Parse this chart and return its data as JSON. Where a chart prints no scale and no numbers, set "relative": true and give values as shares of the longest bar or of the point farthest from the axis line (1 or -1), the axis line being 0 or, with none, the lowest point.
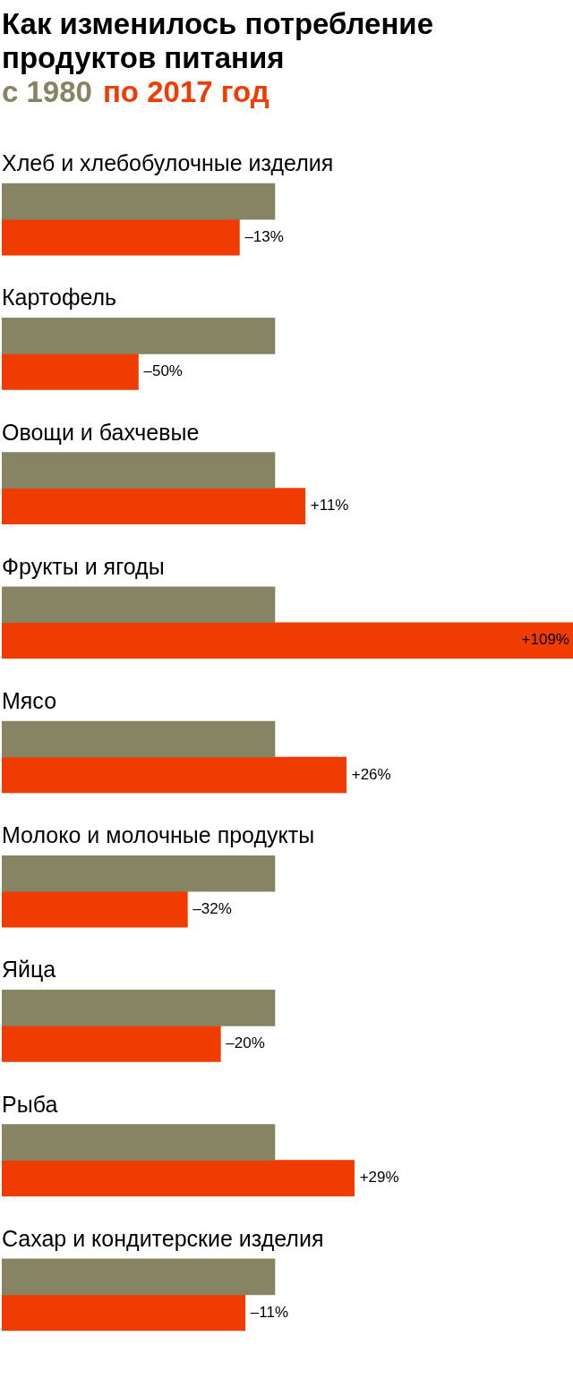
{
  "chart_data": {
    "type": "bar",
    "orientation": "horizontal",
    "relative": true,
    "title": "Как изменилось потребление продуктов питания",
    "categories": [
      "Хлеб и хлебобулочные изделия",
      "Картофель",
      "Овощи и бахчевые",
      "Фрукты и ягоды",
      "Мясо",
      "Молоко и молочные продукты",
      "Яйца",
      "Рыба",
      "Сахар и кондитерские изделия"
    ],
    "series": [
      {
        "name": "с 1980",
        "color": "#868463",
        "values": [
          0.478,
          0.478,
          0.478,
          0.478,
          0.478,
          0.478,
          0.478,
          0.478,
          0.478
        ]
      },
      {
        "name": "по 2017 год",
        "color": "#f03c00",
        "values": [
          0.416,
          0.239,
          0.531,
          1,
          0.603,
          0.325,
          0.383,
          0.617,
          0.426
        ]
      }
    ],
    "annotations": [
      {
        "text": "–13%",
        "x": 0.416,
        "y": "Хлеб и хлебобулочные изделия"
      },
      {
        "text": "–50%",
        "x": 0.239,
        "y": "Картофель"
      },
      {
        "text": "+11%",
        "x": 0.531,
        "y": "Овощи и бахчевые"
      },
      {
        "text": "+109%",
        "x": 1,
        "y": "Фрукты и ягоды"
      },
      {
        "text": "+26%",
        "x": 0.603,
        "y": "Мясо"
      },
      {
        "text": "–32%",
        "x": 0.325,
        "y": "Молоко и молочные продукты"
      },
      {
        "text": "–20%",
        "x": 0.383,
        "y": "Яйца"
      },
      {
        "text": "+29%",
        "x": 0.617,
        "y": "Рыба"
      },
      {
        "text": "–11%",
        "x": 0.426,
        "y": "Сахар и кондитерские изделия"
      }
    ]
  }
}
